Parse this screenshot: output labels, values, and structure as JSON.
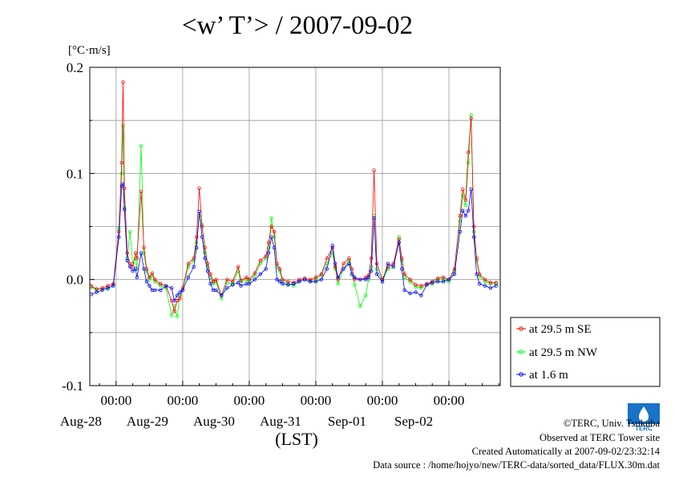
{
  "title": "<w’ T’> / 2007-09-02",
  "unit": "[°C·m/s]",
  "credits": {
    "copyright": "©TERC, Univ. Tsukuba",
    "observed": "Observed at TERC Tower site",
    "created": "Created Automatically at 2007-09-02/23:32:14",
    "source": "Data source : /home/hojyo/new/TERC-data/sorted_data/FLUX.30m.dat",
    "logo_text": "TERC"
  },
  "colors": {
    "red": "#ff0000",
    "green": "#00ff00",
    "blue": "#0000ff",
    "black": "#000000"
  },
  "chart_data": {
    "type": "line",
    "xlabel": "(LST)",
    "ylabel": "",
    "ylim": [
      -0.1,
      0.2
    ],
    "yticks": [
      "-0.1",
      "0.0",
      "0.1",
      "0.2"
    ],
    "ytick_values": [
      -0.1,
      0.0,
      0.1,
      0.2
    ],
    "x_unit": "hours from Aug-28 00:00",
    "xlim": [
      -9.5,
      138.5
    ],
    "xtick_hours": [
      0,
      24,
      48,
      72,
      96,
      120
    ],
    "xtick_times": [
      "00:00",
      "00:00",
      "00:00",
      "00:00",
      "00:00",
      "00:00"
    ],
    "xtick_dates": [
      "Aug-28",
      "Aug-29",
      "Aug-30",
      "Aug-31",
      "Sep-01",
      "Sep-02"
    ],
    "grid": true,
    "legend_position": "right",
    "series": [
      {
        "name": "at 29.5 m SE",
        "color": "#ff0000",
        "points": [
          [
            -9,
            -0.006
          ],
          [
            -7,
            -0.009
          ],
          [
            -5,
            -0.008
          ],
          [
            -3,
            -0.006
          ],
          [
            -1,
            -0.004
          ],
          [
            1,
            0.045
          ],
          [
            2,
            0.11
          ],
          [
            2.5,
            0.186
          ],
          [
            3,
            0.086
          ],
          [
            4,
            0.025
          ],
          [
            5,
            0.015
          ],
          [
            6,
            0.012
          ],
          [
            7,
            0.025
          ],
          [
            7.5,
            0.02
          ],
          [
            9,
            0.083
          ],
          [
            10,
            0.03
          ],
          [
            11,
            0.01
          ],
          [
            12,
            0.002
          ],
          [
            13,
            0.006
          ],
          [
            14,
            0.0
          ],
          [
            16,
            -0.004
          ],
          [
            18,
            -0.006
          ],
          [
            20,
            -0.02
          ],
          [
            21,
            -0.03
          ],
          [
            22,
            -0.02
          ],
          [
            23,
            -0.018
          ],
          [
            24,
            -0.008
          ],
          [
            26,
            0.015
          ],
          [
            28,
            0.02
          ],
          [
            29,
            0.04
          ],
          [
            30,
            0.086
          ],
          [
            31,
            0.05
          ],
          [
            32,
            0.03
          ],
          [
            33,
            0.015
          ],
          [
            34,
            0.005
          ],
          [
            35,
            -0.002
          ],
          [
            36,
            0.0
          ],
          [
            38,
            -0.015
          ],
          [
            40,
            0.0
          ],
          [
            42,
            -0.002
          ],
          [
            44,
            0.012
          ],
          [
            45,
            -0.001
          ],
          [
            47,
            0.002
          ],
          [
            48,
            0.0
          ],
          [
            50,
            0.006
          ],
          [
            52,
            0.018
          ],
          [
            54,
            0.022
          ],
          [
            55,
            0.035
          ],
          [
            56,
            0.05
          ],
          [
            57,
            0.045
          ],
          [
            58,
            0.015
          ],
          [
            59,
            0.01
          ],
          [
            60,
            0.0
          ],
          [
            62,
            -0.002
          ],
          [
            64,
            -0.003
          ],
          [
            66,
            0.0
          ],
          [
            68,
            0.001
          ],
          [
            70,
            0.0
          ],
          [
            72,
            0.002
          ],
          [
            74,
            0.005
          ],
          [
            76,
            0.02
          ],
          [
            78,
            0.03
          ],
          [
            79,
            0.012
          ],
          [
            80,
            0.0
          ],
          [
            82,
            0.015
          ],
          [
            84,
            0.02
          ],
          [
            85,
            0.01
          ],
          [
            86,
            0.0
          ],
          [
            88,
            0.0
          ],
          [
            90,
            0.002
          ],
          [
            91,
            0.004
          ],
          [
            92,
            0.02
          ],
          [
            93,
            0.103
          ],
          [
            94,
            0.015
          ],
          [
            96,
            0.0
          ],
          [
            98,
            0.012
          ],
          [
            100,
            0.015
          ],
          [
            102,
            0.038
          ],
          [
            103,
            0.02
          ],
          [
            104,
            0.005
          ],
          [
            106,
            0.0
          ],
          [
            108,
            -0.005
          ],
          [
            110,
            -0.006
          ],
          [
            112,
            -0.004
          ],
          [
            114,
            -0.002
          ],
          [
            116,
            0.001
          ],
          [
            118,
            0.002
          ],
          [
            120,
            0.0
          ],
          [
            122,
            0.01
          ],
          [
            124,
            0.06
          ],
          [
            125,
            0.085
          ],
          [
            126,
            0.075
          ],
          [
            127,
            0.12
          ],
          [
            128,
            0.152
          ],
          [
            129,
            0.05
          ],
          [
            130,
            0.02
          ],
          [
            131,
            0.005
          ],
          [
            133,
            0.0
          ],
          [
            135,
            -0.003
          ],
          [
            137,
            -0.003
          ]
        ]
      },
      {
        "name": "at 29.5 m NW",
        "color": "#00ff00",
        "points": [
          [
            -9,
            -0.007
          ],
          [
            -7,
            -0.01
          ],
          [
            -5,
            -0.008
          ],
          [
            -3,
            -0.009
          ],
          [
            -1,
            -0.005
          ],
          [
            1,
            0.048
          ],
          [
            2,
            0.1
          ],
          [
            2.5,
            0.145
          ],
          [
            3,
            0.068
          ],
          [
            4,
            0.02
          ],
          [
            5,
            0.045
          ],
          [
            6,
            0.015
          ],
          [
            7,
            0.02
          ],
          [
            7.5,
            0.01
          ],
          [
            9,
            0.126
          ],
          [
            10,
            0.025
          ],
          [
            11,
            0.008
          ],
          [
            12,
            0.0
          ],
          [
            13,
            0.004
          ],
          [
            14,
            -0.002
          ],
          [
            16,
            -0.006
          ],
          [
            18,
            -0.008
          ],
          [
            20,
            -0.034
          ],
          [
            21,
            -0.025
          ],
          [
            22,
            -0.035
          ],
          [
            23,
            -0.015
          ],
          [
            24,
            -0.01
          ],
          [
            26,
            0.012
          ],
          [
            28,
            0.018
          ],
          [
            29,
            0.035
          ],
          [
            30,
            0.06
          ],
          [
            31,
            0.052
          ],
          [
            32,
            0.025
          ],
          [
            33,
            0.012
          ],
          [
            34,
            0.002
          ],
          [
            35,
            -0.004
          ],
          [
            36,
            -0.002
          ],
          [
            38,
            -0.018
          ],
          [
            40,
            -0.003
          ],
          [
            42,
            -0.004
          ],
          [
            44,
            0.008
          ],
          [
            45,
            -0.003
          ],
          [
            47,
            0.0
          ],
          [
            48,
            -0.002
          ],
          [
            50,
            0.004
          ],
          [
            52,
            0.015
          ],
          [
            54,
            0.02
          ],
          [
            55,
            0.03
          ],
          [
            56,
            0.058
          ],
          [
            57,
            0.04
          ],
          [
            58,
            0.012
          ],
          [
            59,
            0.008
          ],
          [
            60,
            -0.002
          ],
          [
            62,
            -0.004
          ],
          [
            64,
            -0.006
          ],
          [
            66,
            -0.002
          ],
          [
            68,
            0.0
          ],
          [
            70,
            -0.002
          ],
          [
            72,
            0.0
          ],
          [
            74,
            0.004
          ],
          [
            76,
            0.015
          ],
          [
            78,
            0.025
          ],
          [
            79,
            0.01
          ],
          [
            80,
            -0.004
          ],
          [
            82,
            0.01
          ],
          [
            84,
            0.018
          ],
          [
            85,
            0.005
          ],
          [
            86,
            -0.005
          ],
          [
            88,
            -0.025
          ],
          [
            90,
            -0.015
          ],
          [
            91,
            0.0
          ],
          [
            92,
            0.012
          ],
          [
            93,
            0.06
          ],
          [
            94,
            0.01
          ],
          [
            96,
            -0.002
          ],
          [
            98,
            0.01
          ],
          [
            100,
            0.012
          ],
          [
            102,
            0.04
          ],
          [
            103,
            0.018
          ],
          [
            104,
            0.002
          ],
          [
            106,
            -0.002
          ],
          [
            108,
            -0.007
          ],
          [
            110,
            -0.008
          ],
          [
            112,
            -0.005
          ],
          [
            114,
            -0.004
          ],
          [
            116,
            0.0
          ],
          [
            118,
            0.0
          ],
          [
            120,
            -0.002
          ],
          [
            122,
            0.008
          ],
          [
            124,
            0.055
          ],
          [
            125,
            0.08
          ],
          [
            126,
            0.07
          ],
          [
            127,
            0.11
          ],
          [
            128,
            0.155
          ],
          [
            129,
            0.045
          ],
          [
            130,
            0.018
          ],
          [
            131,
            0.003
          ],
          [
            133,
            -0.002
          ],
          [
            135,
            -0.004
          ],
          [
            137,
            -0.004
          ]
        ]
      },
      {
        "name": "at 1.6 m",
        "color": "#0000ff",
        "points": [
          [
            -9,
            -0.014
          ],
          [
            -7,
            -0.012
          ],
          [
            -5,
            -0.01
          ],
          [
            -3,
            -0.008
          ],
          [
            -1,
            -0.006
          ],
          [
            1,
            0.04
          ],
          [
            2,
            0.088
          ],
          [
            2.5,
            0.09
          ],
          [
            3,
            0.066
          ],
          [
            4,
            0.018
          ],
          [
            5,
            0.012
          ],
          [
            6,
            0.008
          ],
          [
            7,
            0.01
          ],
          [
            7.5,
            0.002
          ],
          [
            9,
            0.025
          ],
          [
            10,
            0.01
          ],
          [
            11,
            -0.002
          ],
          [
            12,
            -0.006
          ],
          [
            13,
            -0.01
          ],
          [
            14,
            -0.01
          ],
          [
            16,
            -0.01
          ],
          [
            18,
            -0.006
          ],
          [
            20,
            -0.008
          ],
          [
            21,
            -0.02
          ],
          [
            22,
            -0.015
          ],
          [
            23,
            -0.012
          ],
          [
            24,
            -0.01
          ],
          [
            26,
            0.002
          ],
          [
            28,
            0.012
          ],
          [
            29,
            0.03
          ],
          [
            30,
            0.064
          ],
          [
            31,
            0.04
          ],
          [
            32,
            0.02
          ],
          [
            33,
            0.008
          ],
          [
            34,
            -0.004
          ],
          [
            35,
            -0.01
          ],
          [
            36,
            -0.01
          ],
          [
            38,
            -0.015
          ],
          [
            40,
            -0.008
          ],
          [
            42,
            -0.005
          ],
          [
            44,
            -0.003
          ],
          [
            45,
            -0.006
          ],
          [
            47,
            -0.004
          ],
          [
            48,
            -0.004
          ],
          [
            50,
            0.0
          ],
          [
            52,
            0.005
          ],
          [
            54,
            0.01
          ],
          [
            55,
            0.025
          ],
          [
            56,
            0.04
          ],
          [
            57,
            0.03
          ],
          [
            58,
            0.0
          ],
          [
            59,
            -0.002
          ],
          [
            60,
            -0.004
          ],
          [
            62,
            -0.005
          ],
          [
            64,
            -0.004
          ],
          [
            66,
            -0.002
          ],
          [
            68,
            0.0
          ],
          [
            70,
            -0.002
          ],
          [
            72,
            -0.002
          ],
          [
            74,
            0.0
          ],
          [
            76,
            0.01
          ],
          [
            78,
            0.032
          ],
          [
            79,
            0.015
          ],
          [
            80,
            0.002
          ],
          [
            82,
            0.01
          ],
          [
            84,
            0.015
          ],
          [
            85,
            0.005
          ],
          [
            86,
            0.002
          ],
          [
            88,
            0.0
          ],
          [
            90,
            0.0
          ],
          [
            91,
            0.002
          ],
          [
            92,
            0.008
          ],
          [
            93,
            0.058
          ],
          [
            94,
            0.005
          ],
          [
            96,
            -0.002
          ],
          [
            98,
            0.015
          ],
          [
            100,
            0.012
          ],
          [
            102,
            0.035
          ],
          [
            103,
            0.01
          ],
          [
            104,
            -0.01
          ],
          [
            106,
            -0.013
          ],
          [
            108,
            -0.012
          ],
          [
            110,
            -0.015
          ],
          [
            112,
            -0.005
          ],
          [
            114,
            -0.003
          ],
          [
            116,
            -0.002
          ],
          [
            118,
            -0.002
          ],
          [
            120,
            0.0
          ],
          [
            122,
            0.005
          ],
          [
            124,
            0.045
          ],
          [
            125,
            0.065
          ],
          [
            126,
            0.06
          ],
          [
            127,
            0.065
          ],
          [
            128,
            0.085
          ],
          [
            129,
            0.04
          ],
          [
            130,
            0.005
          ],
          [
            131,
            -0.004
          ],
          [
            133,
            -0.006
          ],
          [
            135,
            -0.008
          ],
          [
            137,
            -0.006
          ]
        ]
      }
    ]
  }
}
